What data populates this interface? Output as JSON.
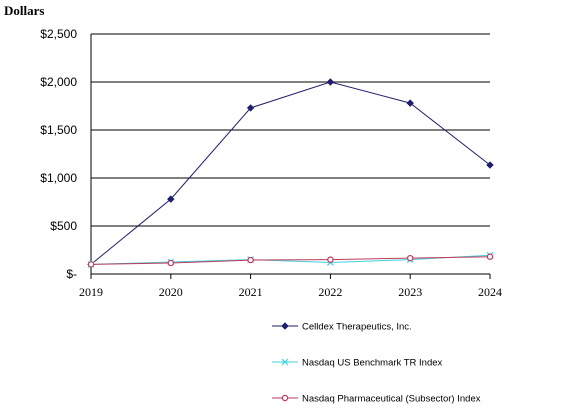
{
  "chart_data": {
    "type": "line",
    "ylabel": "Dollars",
    "xlabel": "",
    "categories": [
      "2019",
      "2020",
      "2021",
      "2022",
      "2023",
      "2024"
    ],
    "ylim": [
      0,
      2500
    ],
    "yticks": [
      0,
      500,
      1000,
      1500,
      2000,
      2500
    ],
    "ytick_labels": [
      "$-",
      "$500",
      "$1,000",
      "$1,500",
      "$2,000",
      "$2,500"
    ],
    "grid": true,
    "legend_position": "bottom",
    "series": [
      {
        "name": "Celldex Therapeutics, Inc.",
        "values": [
          100,
          780,
          1730,
          2000,
          1780,
          1135
        ],
        "color": "#1f1f6e",
        "marker": "diamond"
      },
      {
        "name": "Nasdaq US Benchmark TR Index",
        "values": [
          100,
          125,
          150,
          120,
          150,
          195
        ],
        "color": "#40d0e0",
        "marker": "x"
      },
      {
        "name": "Nasdaq Pharmaceutical (Subsector) Index",
        "values": [
          100,
          115,
          145,
          150,
          165,
          180
        ],
        "color": "#c0395a",
        "marker": "circle"
      }
    ]
  }
}
